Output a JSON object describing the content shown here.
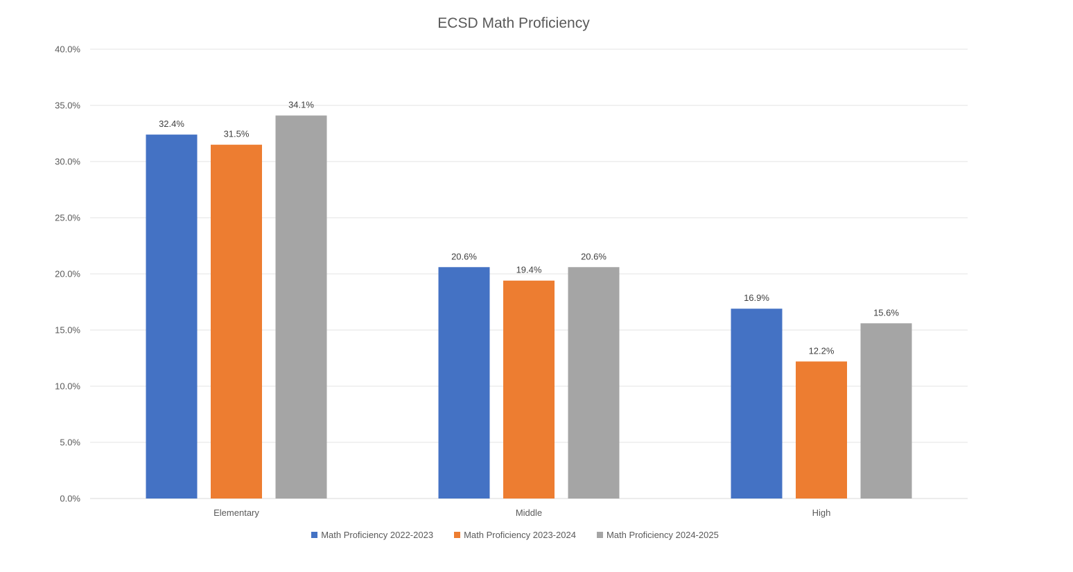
{
  "chart_data": {
    "type": "bar",
    "title": "ECSD Math Proficiency",
    "xlabel": "",
    "ylabel": "",
    "categories": [
      "Elementary",
      "Middle",
      "High"
    ],
    "series": [
      {
        "name": "Math Proficiency 2022-2023",
        "values": [
          32.4,
          20.6,
          16.9
        ],
        "color": "#4472C4",
        "labels": [
          "32.4%",
          "20.6%",
          "16.9%"
        ]
      },
      {
        "name": "Math Proficiency 2023-2024",
        "values": [
          31.5,
          19.4,
          12.2
        ],
        "color": "#ED7D31",
        "labels": [
          "31.5%",
          "19.4%",
          "12.2%"
        ]
      },
      {
        "name": "Math Proficiency 2024-2025",
        "values": [
          34.1,
          20.6,
          15.6
        ],
        "color": "#A5A5A5",
        "labels": [
          "34.1%",
          "20.6%",
          "15.6%"
        ]
      }
    ],
    "ylim": [
      0,
      40
    ],
    "yticks": [
      "0.0%",
      "5.0%",
      "10.0%",
      "15.0%",
      "20.0%",
      "25.0%",
      "30.0%",
      "35.0%",
      "40.0%"
    ],
    "grid": true,
    "legend_position": "bottom"
  }
}
